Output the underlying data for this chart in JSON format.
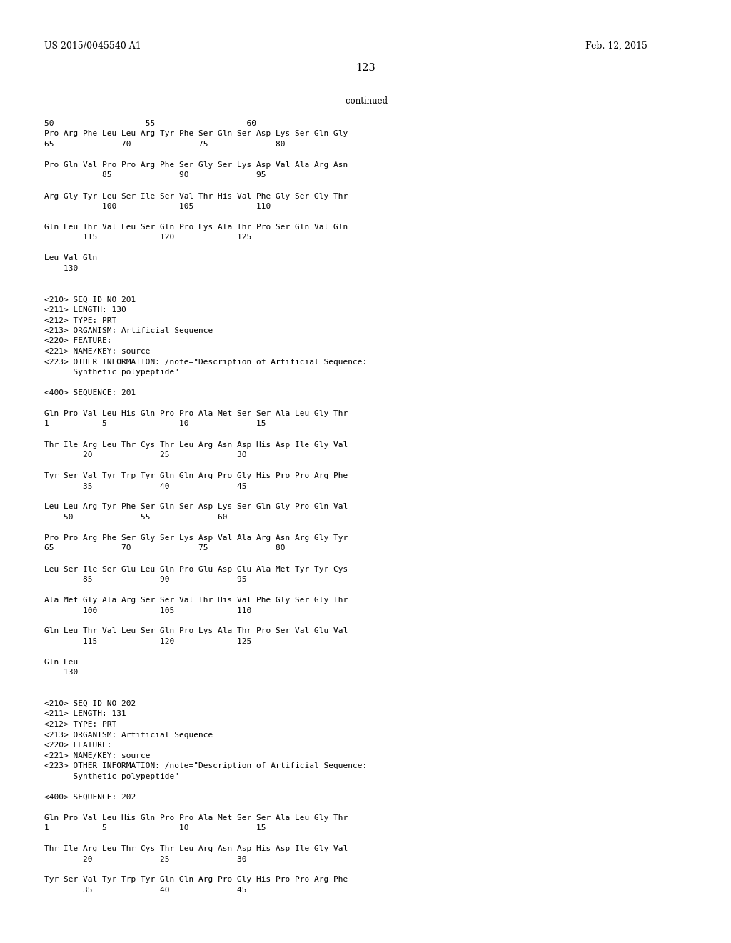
{
  "header_left": "US 2015/0045540 A1",
  "header_right": "Feb. 12, 2015",
  "page_number": "123",
  "continued_label": "-continued",
  "background_color": "#ffffff",
  "text_color": "#000000",
  "font_size": 8.0,
  "header_font_size": 9.0,
  "page_num_font_size": 10.5,
  "content_lines": [
    [
      0.085,
      "50                   55                   60"
    ],
    [
      0.085,
      "Pro Arg Phe Leu Leu Arg Tyr Phe Ser Gln Ser Asp Lys Ser Gln Gly"
    ],
    [
      0.085,
      "65              70              75              80"
    ],
    [
      0.085,
      ""
    ],
    [
      0.085,
      "Pro Gln Val Pro Pro Arg Phe Ser Gly Ser Lys Asp Val Ala Arg Asn"
    ],
    [
      0.085,
      "            85              90              95"
    ],
    [
      0.085,
      ""
    ],
    [
      0.085,
      "Arg Gly Tyr Leu Ser Ile Ser Val Thr His Val Phe Gly Ser Gly Thr"
    ],
    [
      0.085,
      "            100             105             110"
    ],
    [
      0.085,
      ""
    ],
    [
      0.085,
      "Gln Leu Thr Val Leu Ser Gln Pro Lys Ala Thr Pro Ser Gln Val Gln"
    ],
    [
      0.085,
      "        115             120             125"
    ],
    [
      0.085,
      ""
    ],
    [
      0.085,
      "Leu Val Gln"
    ],
    [
      0.085,
      "    130"
    ],
    [
      0.085,
      ""
    ],
    [
      0.085,
      ""
    ],
    [
      0.085,
      "<210> SEQ ID NO 201"
    ],
    [
      0.085,
      "<211> LENGTH: 130"
    ],
    [
      0.085,
      "<212> TYPE: PRT"
    ],
    [
      0.085,
      "<213> ORGANISM: Artificial Sequence"
    ],
    [
      0.085,
      "<220> FEATURE:"
    ],
    [
      0.085,
      "<221> NAME/KEY: source"
    ],
    [
      0.085,
      "<223> OTHER INFORMATION: /note=\"Description of Artificial Sequence:"
    ],
    [
      0.085,
      "      Synthetic polypeptide\""
    ],
    [
      0.085,
      ""
    ],
    [
      0.085,
      "<400> SEQUENCE: 201"
    ],
    [
      0.085,
      ""
    ],
    [
      0.085,
      "Gln Pro Val Leu His Gln Pro Pro Ala Met Ser Ser Ala Leu Gly Thr"
    ],
    [
      0.085,
      "1           5               10              15"
    ],
    [
      0.085,
      ""
    ],
    [
      0.085,
      "Thr Ile Arg Leu Thr Cys Thr Leu Arg Asn Asp His Asp Ile Gly Val"
    ],
    [
      0.085,
      "        20              25              30"
    ],
    [
      0.085,
      ""
    ],
    [
      0.085,
      "Tyr Ser Val Tyr Trp Tyr Gln Gln Arg Pro Gly His Pro Pro Arg Phe"
    ],
    [
      0.085,
      "        35              40              45"
    ],
    [
      0.085,
      ""
    ],
    [
      0.085,
      "Leu Leu Arg Tyr Phe Ser Gln Ser Asp Lys Ser Gln Gly Pro Gln Val"
    ],
    [
      0.085,
      "    50              55              60"
    ],
    [
      0.085,
      ""
    ],
    [
      0.085,
      "Pro Pro Arg Phe Ser Gly Ser Lys Asp Val Ala Arg Asn Arg Gly Tyr"
    ],
    [
      0.085,
      "65              70              75              80"
    ],
    [
      0.085,
      ""
    ],
    [
      0.085,
      "Leu Ser Ile Ser Glu Leu Gln Pro Glu Asp Glu Ala Met Tyr Tyr Cys"
    ],
    [
      0.085,
      "        85              90              95"
    ],
    [
      0.085,
      ""
    ],
    [
      0.085,
      "Ala Met Gly Ala Arg Ser Ser Val Thr His Val Phe Gly Ser Gly Thr"
    ],
    [
      0.085,
      "        100             105             110"
    ],
    [
      0.085,
      ""
    ],
    [
      0.085,
      "Gln Leu Thr Val Leu Ser Gln Pro Lys Ala Thr Pro Ser Val Glu Val"
    ],
    [
      0.085,
      "        115             120             125"
    ],
    [
      0.085,
      ""
    ],
    [
      0.085,
      "Gln Leu"
    ],
    [
      0.085,
      "    130"
    ],
    [
      0.085,
      ""
    ],
    [
      0.085,
      ""
    ],
    [
      0.085,
      "<210> SEQ ID NO 202"
    ],
    [
      0.085,
      "<211> LENGTH: 131"
    ],
    [
      0.085,
      "<212> TYPE: PRT"
    ],
    [
      0.085,
      "<213> ORGANISM: Artificial Sequence"
    ],
    [
      0.085,
      "<220> FEATURE:"
    ],
    [
      0.085,
      "<221> NAME/KEY: source"
    ],
    [
      0.085,
      "<223> OTHER INFORMATION: /note=\"Description of Artificial Sequence:"
    ],
    [
      0.085,
      "      Synthetic polypeptide\""
    ],
    [
      0.085,
      ""
    ],
    [
      0.085,
      "<400> SEQUENCE: 202"
    ],
    [
      0.085,
      ""
    ],
    [
      0.085,
      "Gln Pro Val Leu His Gln Pro Pro Ala Met Ser Ser Ala Leu Gly Thr"
    ],
    [
      0.085,
      "1           5               10              15"
    ],
    [
      0.085,
      ""
    ],
    [
      0.085,
      "Thr Ile Arg Leu Thr Cys Thr Leu Arg Asn Asp His Asp Ile Gly Val"
    ],
    [
      0.085,
      "        20              25              30"
    ],
    [
      0.085,
      ""
    ],
    [
      0.085,
      "Tyr Ser Val Tyr Trp Tyr Gln Gln Arg Pro Gly His Pro Pro Arg Phe"
    ],
    [
      0.085,
      "        35              40              45"
    ]
  ]
}
